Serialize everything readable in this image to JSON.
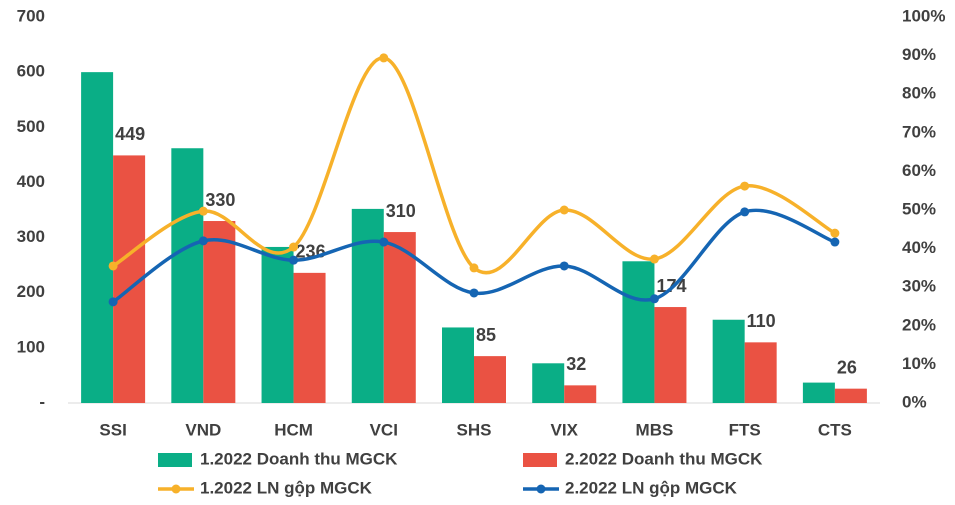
{
  "chart_data": {
    "type": "combo",
    "categories": [
      "SSI",
      "VND",
      "HCM",
      "VCI",
      "SHS",
      "VIX",
      "MBS",
      "FTS",
      "CTS"
    ],
    "series": [
      {
        "name": "1.2022 Doanh thu MGCK",
        "type": "bar",
        "color": "#0aae86",
        "values": [
          600,
          462,
          283,
          352,
          137,
          72,
          257,
          151,
          37
        ]
      },
      {
        "name": "2.2022 Doanh thu MGCK",
        "type": "bar",
        "color": "#ea5243",
        "values": [
          449,
          330,
          236,
          310,
          85,
          32,
          174,
          110,
          26
        ],
        "data_labels": true
      },
      {
        "name": "1.2022 LN gộp MGCK",
        "type": "line",
        "axis": "y2",
        "color": "#f7b12a",
        "values": [
          35.5,
          49.7,
          40.4,
          89.4,
          35,
          50,
          37.3,
          56.2,
          44
        ]
      },
      {
        "name": "2.2022 LN gộp MGCK",
        "type": "line",
        "axis": "y2",
        "color": "#1565b3",
        "values": [
          26.2,
          42,
          37,
          41.7,
          28.5,
          35.5,
          27,
          49.5,
          41.7
        ]
      }
    ],
    "ylim": [
      0,
      700
    ],
    "yticks": [
      {
        "value": 0,
        "label": "-"
      },
      100,
      200,
      300,
      400,
      500,
      600,
      700
    ],
    "y2lim": [
      0,
      100
    ],
    "y2ticks": [
      {
        "value": 0,
        "label": "0%"
      },
      {
        "value": 10,
        "label": "10%"
      },
      {
        "value": 20,
        "label": "20%"
      },
      {
        "value": 30,
        "label": "30%"
      },
      {
        "value": 40,
        "label": "40%"
      },
      {
        "value": 50,
        "label": "50%"
      },
      {
        "value": 60,
        "label": "60%"
      },
      {
        "value": 70,
        "label": "70%"
      },
      {
        "value": 80,
        "label": "80%"
      },
      {
        "value": 90,
        "label": "90%"
      },
      {
        "value": 100,
        "label": "100%"
      }
    ],
    "legend": "bottom"
  }
}
